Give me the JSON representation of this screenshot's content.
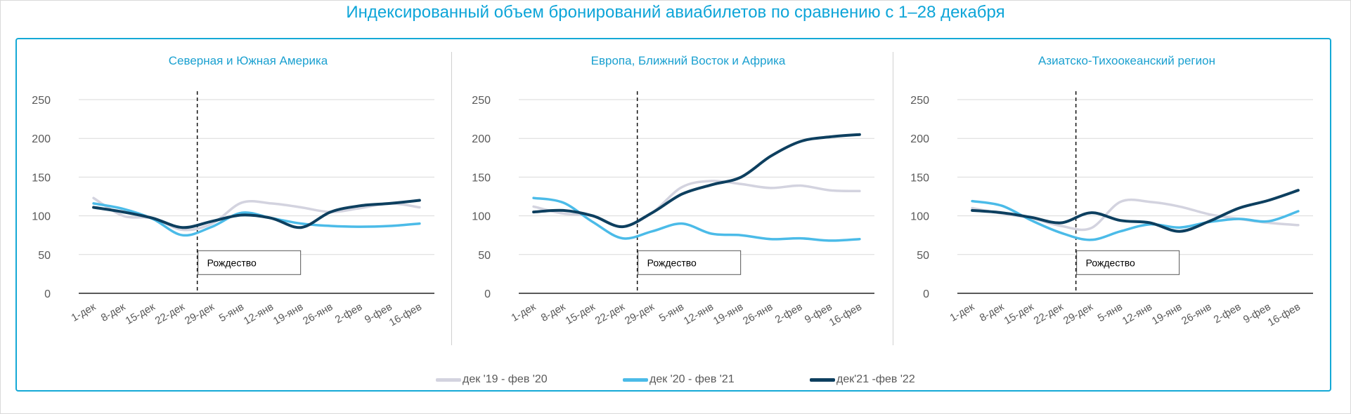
{
  "title": "Индексированный объем бронирований авиабилетов по сравнению с 1–28 декабря",
  "chart_data": [
    {
      "type": "line",
      "title": "Северная и Южная Америка",
      "categories": [
        "1-дек",
        "8-дек",
        "15-дек",
        "22-дек",
        "29-дек",
        "5-янв",
        "12-янв",
        "19-янв",
        "26-янв",
        "2-фев",
        "9-фев",
        "16-фев"
      ],
      "yticks": [
        "0",
        "50",
        "100",
        "150",
        "200",
        "250"
      ],
      "ylim": [
        0,
        250
      ],
      "grid": true,
      "annotation": {
        "label": "Рождество",
        "category": "29-дек"
      },
      "series": [
        {
          "name": "дек '19 - фев '20",
          "color": "#d3d3df",
          "values": [
            123,
            100,
            97,
            82,
            90,
            117,
            116,
            111,
            105,
            110,
            116,
            111
          ]
        },
        {
          "name": "дек '20 - фев '21",
          "color": "#4bbbe8",
          "values": [
            116,
            109,
            96,
            75,
            86,
            104,
            97,
            90,
            87,
            86,
            87,
            90
          ]
        },
        {
          "name": "дек'21 -фев '22",
          "color": "#0d3f5f",
          "values": [
            111,
            105,
            97,
            85,
            93,
            101,
            97,
            85,
            105,
            113,
            116,
            120
          ]
        }
      ]
    },
    {
      "type": "line",
      "title": "Европа, Ближний Восток и Африка",
      "categories": [
        "1-дек",
        "8-дек",
        "15-дек",
        "22-дек",
        "29-дек",
        "5-янв",
        "12-янв",
        "19-янв",
        "26-янв",
        "2-фев",
        "9-фев",
        "16-фев"
      ],
      "yticks": [
        "0",
        "50",
        "100",
        "150",
        "200",
        "250"
      ],
      "ylim": [
        0,
        250
      ],
      "grid": true,
      "annotation": {
        "label": "Рождество",
        "category": "29-дек"
      },
      "series": [
        {
          "name": "дек '19 - фев '20",
          "color": "#d3d3df",
          "values": [
            112,
            103,
            100,
            86,
            104,
            137,
            145,
            141,
            136,
            139,
            133,
            132
          ]
        },
        {
          "name": "дек '20 - фев '21",
          "color": "#4bbbe8",
          "values": [
            123,
            117,
            92,
            71,
            80,
            90,
            77,
            75,
            70,
            71,
            68,
            70
          ]
        },
        {
          "name": "дек'21 -фев '22",
          "color": "#0d3f5f",
          "values": [
            105,
            107,
            100,
            86,
            104,
            128,
            140,
            150,
            177,
            196,
            202,
            205
          ]
        }
      ]
    },
    {
      "type": "line",
      "title": "Азиатско-Тихоокеанский регион",
      "categories": [
        "1-дек",
        "8-дек",
        "15-дек",
        "22-дек",
        "29-дек",
        "5-янв",
        "12-янв",
        "19-янв",
        "26-янв",
        "2-фев",
        "9-фев",
        "16-фев"
      ],
      "yticks": [
        "0",
        "50",
        "100",
        "150",
        "200",
        "250"
      ],
      "ylim": [
        0,
        250
      ],
      "grid": true,
      "annotation": {
        "label": "Рождество",
        "category": "29-дек"
      },
      "series": [
        {
          "name": "дек '19 - фев '20",
          "color": "#d3d3df",
          "values": [
            110,
            103,
            97,
            87,
            84,
            118,
            118,
            112,
            102,
            96,
            91,
            88
          ]
        },
        {
          "name": "дек '20 - фев '21",
          "color": "#4bbbe8",
          "values": [
            119,
            113,
            94,
            78,
            69,
            80,
            89,
            85,
            92,
            96,
            93,
            106
          ]
        },
        {
          "name": "дек'21 -фев '22",
          "color": "#0d3f5f",
          "values": [
            107,
            104,
            98,
            91,
            104,
            94,
            91,
            80,
            93,
            110,
            120,
            133
          ]
        }
      ]
    }
  ],
  "legend": [
    {
      "label": "дек '19 - фев '20",
      "color": "#d3d3df"
    },
    {
      "label": "дек '20 - фев '21",
      "color": "#4bbbe8"
    },
    {
      "label": "дек'21 -фев '22",
      "color": "#0d3f5f"
    }
  ]
}
